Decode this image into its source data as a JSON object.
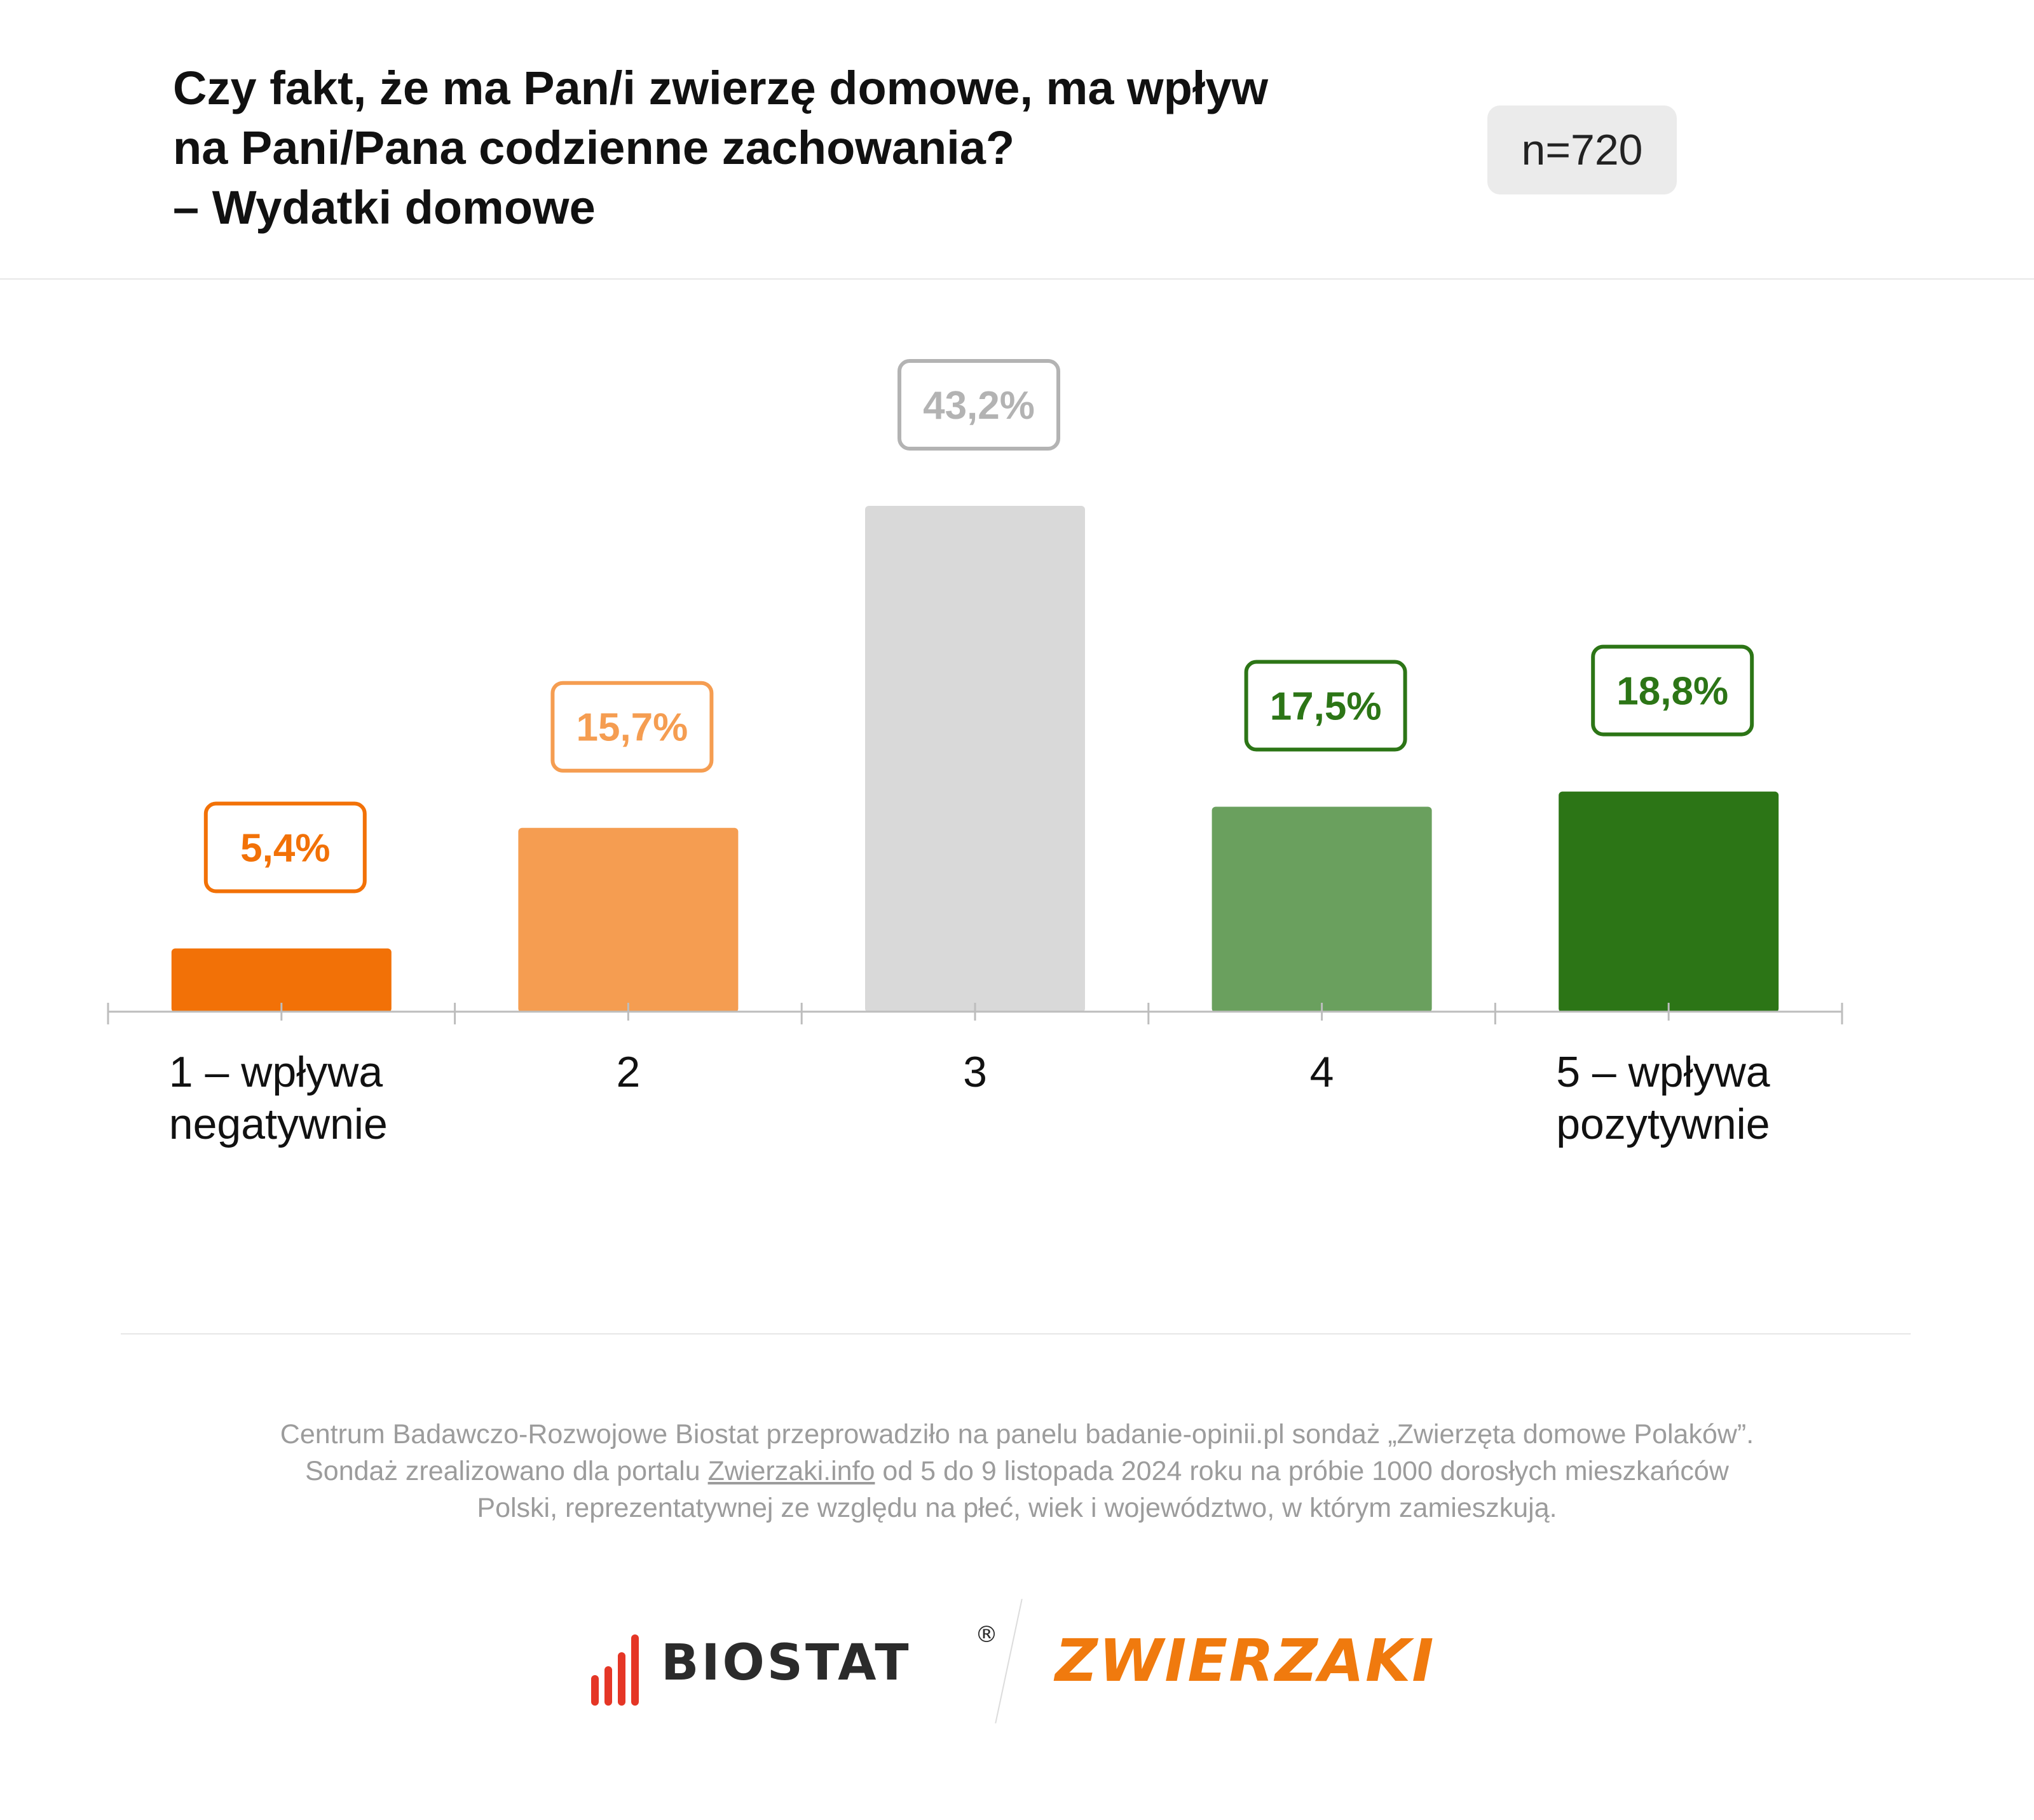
{
  "title_lines": [
    "Czy fakt, że ma Pan/i zwierzę domowe, ma wpływ",
    "na Pani/Pana codzienne zachowania?",
    "– Wydatki domowe"
  ],
  "sample_size": "n=720",
  "chart_data": {
    "type": "bar",
    "categories": [
      [
        "1 – wpływa",
        "negatywnie"
      ],
      [
        "2"
      ],
      [
        "3"
      ],
      [
        "4"
      ],
      [
        "5 – wpływa",
        "pozytywnie"
      ]
    ],
    "values": [
      5.4,
      15.7,
      43.2,
      17.5,
      18.8
    ],
    "value_labels": [
      "5,4%",
      "15,7%",
      "43,2%",
      "17,5%",
      "18,8%"
    ],
    "unit": "%",
    "colors": [
      "#f27107",
      "#f59d51",
      "#d9d9d9",
      "#6aa05e",
      "#2c7516"
    ],
    "label_colors": [
      "#f27107",
      "#f59d51",
      "#b3b3b3",
      "#2c7516",
      "#2c7516"
    ],
    "ylim": [
      0,
      43.2
    ],
    "grid": false,
    "legend": "none"
  },
  "footnote": {
    "line1": "Centrum Badawczo-Rozwojowe Biostat przeprowadziło na panelu badanie-opinii.pl sondaż „Zwierzęta domowe Polaków”.",
    "line2_before": "Sondaż zrealizowano dla portalu",
    "line2_link": "Zwierzaki.info",
    "line2_after": "od 5 do 9 listopada 2024 roku na próbie 1000 dorosłych mieszkańców",
    "line3": "Polski, reprezentatywnej ze względu na płeć, wiek i województwo, w którym zamieszkują."
  },
  "logos": {
    "biostat": "BIOSTAT",
    "registered": "®",
    "zwierzaki": "ZWIERZAKI",
    "biostat_color": "#e53626",
    "zwierzaki_color": "#f07a0e"
  }
}
